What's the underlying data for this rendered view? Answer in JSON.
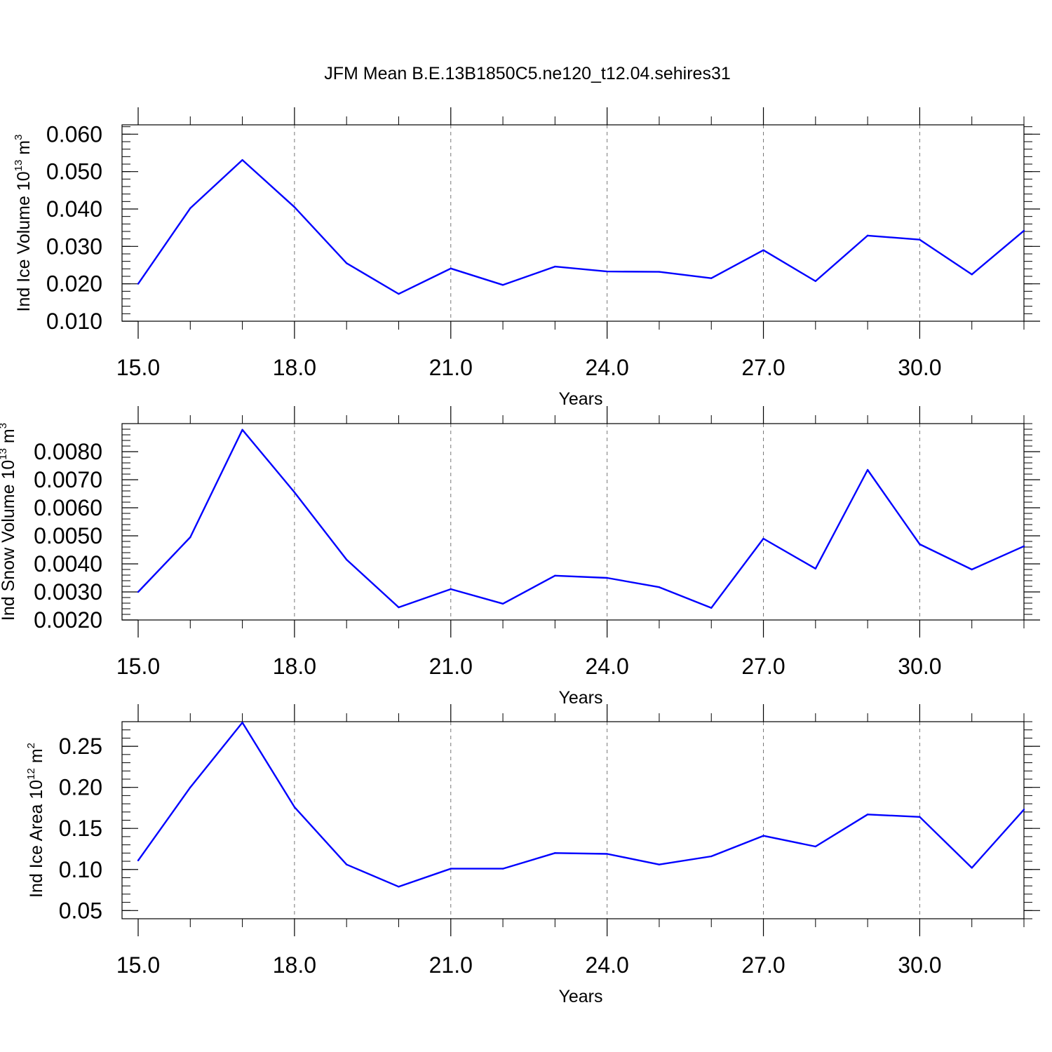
{
  "figure": {
    "title": "JFM Mean B.E.13B1850C5.ne120_t12.04.sehires31"
  },
  "chart_data": [
    {
      "type": "line",
      "xlabel": "Years",
      "ylabel": {
        "base": "Ind Ice Volume 10",
        "exp": "13",
        "unit": " m",
        "unit_exp": "3"
      },
      "xlim": [
        15,
        32
      ],
      "ylim": [
        0.01,
        0.0625
      ],
      "xticks": [
        15,
        18,
        21,
        24,
        27,
        30
      ],
      "xtick_labels": [
        "15.0",
        "18.0",
        "21.0",
        "24.0",
        "27.0",
        "30.0"
      ],
      "yticks": [
        0.01,
        0.02,
        0.03,
        0.04,
        0.05,
        0.06
      ],
      "ytick_labels": [
        "0.010",
        "0.020",
        "0.030",
        "0.040",
        "0.050",
        "0.060"
      ],
      "grid": "x-dashed",
      "line_color": "#0000ff",
      "x": [
        15,
        16,
        17,
        18,
        19,
        20,
        21,
        22,
        23,
        24,
        25,
        26,
        27,
        28,
        29,
        30,
        31,
        32
      ],
      "values": [
        0.02,
        0.0402,
        0.0531,
        0.0405,
        0.0255,
        0.0173,
        0.0241,
        0.0197,
        0.0246,
        0.0233,
        0.0232,
        0.0215,
        0.029,
        0.0207,
        0.0329,
        0.0318,
        0.0225,
        0.0342
      ]
    },
    {
      "type": "line",
      "xlabel": "Years",
      "ylabel": {
        "base": "Ind Snow Volume 10",
        "exp": "13",
        "unit": " m",
        "unit_exp": "3"
      },
      "xlim": [
        15,
        32
      ],
      "ylim": [
        0.002,
        0.009
      ],
      "xticks": [
        15,
        18,
        21,
        24,
        27,
        30
      ],
      "xtick_labels": [
        "15.0",
        "18.0",
        "21.0",
        "24.0",
        "27.0",
        "30.0"
      ],
      "yticks": [
        0.002,
        0.003,
        0.004,
        0.005,
        0.006,
        0.007,
        0.008
      ],
      "ytick_labels": [
        "0.0020",
        "0.0030",
        "0.0040",
        "0.0050",
        "0.0060",
        "0.0070",
        "0.0080"
      ],
      "grid": "x-dashed",
      "line_color": "#0000ff",
      "x": [
        15,
        16,
        17,
        18,
        19,
        20,
        21,
        22,
        23,
        24,
        25,
        26,
        27,
        28,
        29,
        30,
        31,
        32
      ],
      "values": [
        0.003,
        0.00495,
        0.00878,
        0.00655,
        0.00415,
        0.00245,
        0.0031,
        0.00258,
        0.00358,
        0.0035,
        0.00317,
        0.00243,
        0.0049,
        0.00383,
        0.00735,
        0.0047,
        0.0038,
        0.00463
      ]
    },
    {
      "type": "line",
      "xlabel": "Years",
      "ylabel": {
        "base": "Ind Ice Area 10",
        "exp": "12",
        "unit": " m",
        "unit_exp": "2"
      },
      "xlim": [
        15,
        32
      ],
      "ylim": [
        0.04,
        0.28
      ],
      "xticks": [
        15,
        18,
        21,
        24,
        27,
        30
      ],
      "xtick_labels": [
        "15.0",
        "18.0",
        "21.0",
        "24.0",
        "27.0",
        "30.0"
      ],
      "yticks": [
        0.05,
        0.1,
        0.15,
        0.2,
        0.25
      ],
      "ytick_labels": [
        "0.05",
        "0.10",
        "0.15",
        "0.20",
        "0.25"
      ],
      "grid": "x-dashed",
      "line_color": "#0000ff",
      "x": [
        15,
        16,
        17,
        18,
        19,
        20,
        21,
        22,
        23,
        24,
        25,
        26,
        27,
        28,
        29,
        30,
        31,
        32
      ],
      "values": [
        0.111,
        0.2,
        0.279,
        0.176,
        0.106,
        0.079,
        0.101,
        0.101,
        0.12,
        0.119,
        0.106,
        0.116,
        0.141,
        0.128,
        0.167,
        0.164,
        0.102,
        0.173
      ]
    }
  ]
}
